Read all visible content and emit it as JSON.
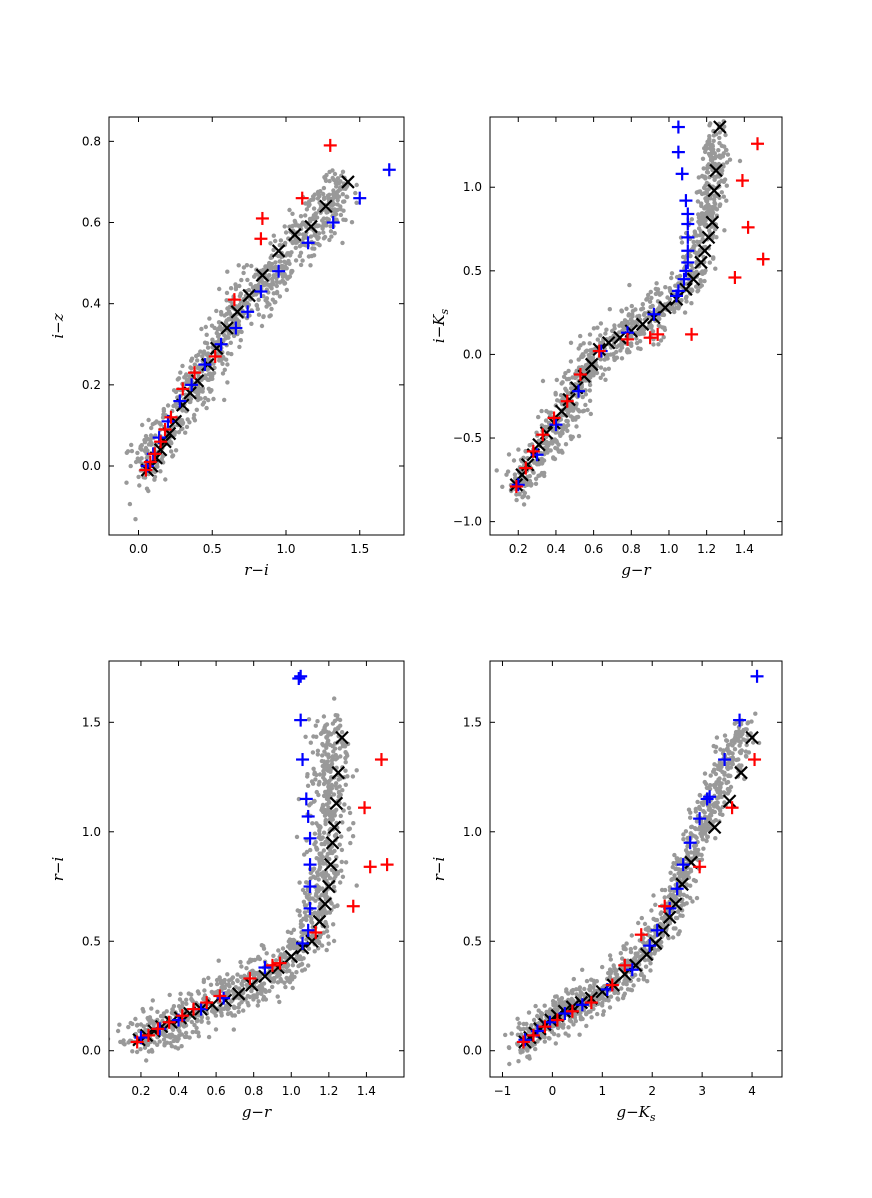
{
  "colors": {
    "background_points": "#999999",
    "black_series": "#000000",
    "blue_series": "#0000ff",
    "red_series": "#ff0000",
    "frame": "#000000"
  },
  "chart_data": [
    {
      "id": "panel-ri-iz",
      "type": "scatter",
      "xlabel": "r−i",
      "ylabel": "i−z",
      "xlim": [
        -0.2,
        1.8
      ],
      "ylim": [
        -0.17,
        0.86
      ],
      "xticks": [
        0.0,
        0.5,
        1.0,
        1.5
      ],
      "xtick_labels": [
        "0.0",
        "0.5",
        "1.0",
        "1.5"
      ],
      "yticks": [
        0.0,
        0.2,
        0.4,
        0.6,
        0.8
      ],
      "ytick_labels": [
        "0.0",
        "0.2",
        "0.4",
        "0.6",
        "0.8"
      ],
      "cloud": {
        "path": [
          [
            0.0,
            -0.01
          ],
          [
            0.3,
            0.14
          ],
          [
            0.6,
            0.34
          ],
          [
            1.0,
            0.52
          ],
          [
            1.4,
            0.69
          ]
        ],
        "scatter_x": 0.05,
        "scatter_y": 0.035,
        "count": 900
      },
      "series": [
        {
          "name": "black-x",
          "marker": "x",
          "x": [
            0.06,
            0.09,
            0.12,
            0.15,
            0.18,
            0.21,
            0.25,
            0.3,
            0.35,
            0.4,
            0.47,
            0.53,
            0.6,
            0.67,
            0.75,
            0.84,
            0.95,
            1.06,
            1.17,
            1.27,
            1.42
          ],
          "y": [
            -0.01,
            0.0,
            0.02,
            0.04,
            0.06,
            0.08,
            0.11,
            0.15,
            0.18,
            0.21,
            0.25,
            0.29,
            0.34,
            0.38,
            0.42,
            0.47,
            0.53,
            0.57,
            0.59,
            0.64,
            0.7
          ]
        },
        {
          "name": "blue-plus",
          "marker": "+",
          "x": [
            0.06,
            0.1,
            0.14,
            0.2,
            0.28,
            0.36,
            0.45,
            0.56,
            0.66,
            0.74,
            0.83,
            0.95,
            1.15,
            1.32,
            1.5,
            1.7
          ],
          "y": [
            0.0,
            0.03,
            0.07,
            0.11,
            0.16,
            0.2,
            0.25,
            0.3,
            0.34,
            0.38,
            0.43,
            0.48,
            0.55,
            0.6,
            0.66,
            0.73
          ]
        },
        {
          "name": "red-plus",
          "marker": "+",
          "x": [
            0.05,
            0.08,
            0.11,
            0.15,
            0.18,
            0.22,
            0.3,
            0.38,
            0.52,
            0.65,
            0.83,
            0.84,
            1.11,
            1.3
          ],
          "y": [
            -0.01,
            0.01,
            0.03,
            0.06,
            0.09,
            0.12,
            0.19,
            0.23,
            0.27,
            0.41,
            0.56,
            0.61,
            0.66,
            0.79
          ]
        }
      ]
    },
    {
      "id": "panel-gr-iKs",
      "type": "scatter",
      "xlabel": "g−r",
      "ylabel": "i−K",
      "ylabel_sub": "s",
      "xlim": [
        0.05,
        1.6
      ],
      "ylim": [
        -1.08,
        1.42
      ],
      "xticks": [
        0.2,
        0.4,
        0.6,
        0.8,
        1.0,
        1.2,
        1.4
      ],
      "xtick_labels": [
        "0.2",
        "0.4",
        "0.6",
        "0.8",
        "1.0",
        "1.2",
        "1.4"
      ],
      "yticks": [
        -1.0,
        -0.5,
        0.0,
        0.5,
        1.0
      ],
      "ytick_labels": [
        "−1.0",
        "−0.5",
        "0.0",
        "0.5",
        "1.0"
      ],
      "cloud": {
        "path": [
          [
            0.18,
            -0.82
          ],
          [
            0.4,
            -0.45
          ],
          [
            0.6,
            -0.02
          ],
          [
            0.8,
            0.15
          ],
          [
            1.0,
            0.3
          ],
          [
            1.12,
            0.45
          ],
          [
            1.18,
            0.7
          ],
          [
            1.22,
            1.0
          ],
          [
            1.26,
            1.32
          ]
        ],
        "scatter_x": 0.04,
        "scatter_y": 0.07,
        "count": 1000
      },
      "series": [
        {
          "name": "black-x",
          "marker": "x",
          "x": [
            0.19,
            0.22,
            0.25,
            0.28,
            0.31,
            0.35,
            0.39,
            0.43,
            0.47,
            0.51,
            0.55,
            0.59,
            0.63,
            0.68,
            0.74,
            0.8,
            0.86,
            0.92,
            0.98,
            1.04,
            1.09,
            1.13,
            1.17,
            1.19,
            1.21,
            1.23,
            1.24,
            1.25,
            1.27
          ],
          "y": [
            -0.78,
            -0.72,
            -0.66,
            -0.6,
            -0.54,
            -0.47,
            -0.41,
            -0.34,
            -0.27,
            -0.2,
            -0.13,
            -0.06,
            0.03,
            0.07,
            0.1,
            0.14,
            0.18,
            0.22,
            0.28,
            0.33,
            0.39,
            0.45,
            0.55,
            0.62,
            0.7,
            0.79,
            0.98,
            1.1,
            1.36
          ]
        },
        {
          "name": "blue-plus",
          "marker": "+",
          "x": [
            0.2,
            0.3,
            0.4,
            0.52,
            0.64,
            0.78,
            0.92,
            1.05,
            1.08,
            1.09,
            1.1,
            1.1,
            1.1,
            1.1,
            1.1,
            1.09,
            1.07,
            1.05,
            1.05,
            1.04
          ],
          "y": [
            -0.78,
            -0.6,
            -0.42,
            -0.22,
            0.02,
            0.13,
            0.24,
            0.38,
            0.45,
            0.5,
            0.55,
            0.62,
            0.7,
            0.78,
            0.84,
            0.92,
            1.08,
            1.21,
            1.36,
            0.35
          ]
        },
        {
          "name": "red-plus",
          "marker": "+",
          "x": [
            0.19,
            0.24,
            0.28,
            0.33,
            0.39,
            0.46,
            0.53,
            0.63,
            0.78,
            0.9,
            0.94,
            1.12,
            1.35,
            1.39,
            1.42,
            1.47,
            1.5
          ],
          "y": [
            -0.79,
            -0.68,
            -0.58,
            -0.48,
            -0.38,
            -0.28,
            -0.12,
            0.02,
            0.09,
            0.1,
            0.12,
            0.12,
            0.46,
            1.04,
            0.76,
            1.26,
            0.57
          ]
        }
      ]
    },
    {
      "id": "panel-gr-ri",
      "type": "scatter",
      "xlabel": "g−r",
      "ylabel": "r−i",
      "xlim": [
        0.03,
        1.6
      ],
      "ylim": [
        -0.12,
        1.78
      ],
      "xticks": [
        0.2,
        0.4,
        0.6,
        0.8,
        1.0,
        1.2,
        1.4
      ],
      "xtick_labels": [
        "0.2",
        "0.4",
        "0.6",
        "0.8",
        "1.0",
        "1.2",
        "1.4"
      ],
      "yticks": [
        0.0,
        0.5,
        1.0,
        1.5
      ],
      "ytick_labels": [
        "0.0",
        "0.5",
        "1.0",
        "1.5"
      ],
      "cloud": {
        "path": [
          [
            0.15,
            0.04
          ],
          [
            0.4,
            0.14
          ],
          [
            0.65,
            0.24
          ],
          [
            0.9,
            0.37
          ],
          [
            1.05,
            0.45
          ],
          [
            1.15,
            0.6
          ],
          [
            1.18,
            0.9
          ],
          [
            1.2,
            1.2
          ],
          [
            1.22,
            1.5
          ]
        ],
        "scatter_x": 0.05,
        "scatter_y": 0.05,
        "count": 1050
      },
      "series": [
        {
          "name": "black-x",
          "marker": "x",
          "x": [
            0.19,
            0.23,
            0.27,
            0.31,
            0.36,
            0.41,
            0.46,
            0.52,
            0.58,
            0.65,
            0.72,
            0.79,
            0.86,
            0.93,
            1.0,
            1.06,
            1.11,
            1.15,
            1.18,
            1.2,
            1.21,
            1.22,
            1.23,
            1.24,
            1.25,
            1.27
          ],
          "y": [
            0.05,
            0.07,
            0.09,
            0.11,
            0.13,
            0.15,
            0.17,
            0.19,
            0.21,
            0.23,
            0.26,
            0.3,
            0.34,
            0.38,
            0.43,
            0.47,
            0.5,
            0.59,
            0.67,
            0.75,
            0.85,
            0.95,
            1.02,
            1.13,
            1.27,
            1.43
          ]
        },
        {
          "name": "blue-plus",
          "marker": "+",
          "x": [
            0.2,
            0.3,
            0.4,
            0.52,
            0.64,
            0.86,
            1.06,
            1.09,
            1.1,
            1.1,
            1.1,
            1.1,
            1.09,
            1.08,
            1.06,
            1.05,
            1.05,
            1.04
          ],
          "y": [
            0.06,
            0.1,
            0.14,
            0.19,
            0.24,
            0.38,
            0.49,
            0.55,
            0.65,
            0.75,
            0.85,
            0.97,
            1.07,
            1.15,
            1.33,
            1.51,
            1.71,
            1.7
          ]
        },
        {
          "name": "red-plus",
          "marker": "+",
          "x": [
            0.18,
            0.24,
            0.29,
            0.35,
            0.42,
            0.48,
            0.55,
            0.62,
            0.78,
            0.9,
            0.94,
            1.13,
            1.33,
            1.39,
            1.42,
            1.48,
            1.51
          ],
          "y": [
            0.04,
            0.07,
            0.1,
            0.13,
            0.16,
            0.19,
            0.22,
            0.25,
            0.33,
            0.39,
            0.4,
            0.54,
            0.66,
            1.11,
            0.84,
            1.33,
            0.85
          ]
        }
      ]
    },
    {
      "id": "panel-gKs-ri",
      "type": "scatter",
      "xlabel": "g−K",
      "xlabel_sub": "s",
      "ylabel": "r−i",
      "xlim": [
        -1.25,
        4.6
      ],
      "ylim": [
        -0.12,
        1.78
      ],
      "xticks": [
        -1,
        0,
        1,
        2,
        3,
        4
      ],
      "xtick_labels": [
        "−1",
        "0",
        "1",
        "2",
        "3",
        "4"
      ],
      "yticks": [
        0.0,
        0.5,
        1.0,
        1.5
      ],
      "ytick_labels": [
        "0.0",
        "0.5",
        "1.0",
        "1.5"
      ],
      "cloud": {
        "path": [
          [
            -0.7,
            0.02
          ],
          [
            0.0,
            0.14
          ],
          [
            0.8,
            0.24
          ],
          [
            1.6,
            0.38
          ],
          [
            2.3,
            0.6
          ],
          [
            2.8,
            0.9
          ],
          [
            3.3,
            1.2
          ],
          [
            3.9,
            1.5
          ]
        ],
        "scatter_x": 0.14,
        "scatter_y": 0.045,
        "count": 1050
      },
      "series": [
        {
          "name": "black-x",
          "marker": "x",
          "x": [
            -0.55,
            -0.45,
            -0.35,
            -0.25,
            -0.15,
            -0.03,
            0.1,
            0.24,
            0.4,
            0.58,
            0.78,
            1.0,
            1.22,
            1.45,
            1.67,
            1.89,
            2.07,
            2.22,
            2.35,
            2.47,
            2.6,
            2.78,
            3.25,
            3.55,
            3.78,
            4.0
          ],
          "y": [
            0.04,
            0.06,
            0.08,
            0.1,
            0.12,
            0.14,
            0.16,
            0.18,
            0.2,
            0.22,
            0.24,
            0.27,
            0.3,
            0.35,
            0.39,
            0.44,
            0.49,
            0.55,
            0.61,
            0.67,
            0.76,
            0.86,
            1.02,
            1.14,
            1.27,
            1.43
          ]
        },
        {
          "name": "blue-plus",
          "marker": "+",
          "x": [
            -0.55,
            -0.3,
            -0.05,
            0.25,
            0.6,
            1.1,
            1.6,
            1.95,
            2.1,
            2.35,
            2.5,
            2.62,
            2.76,
            2.95,
            3.1,
            3.15,
            3.45,
            3.75,
            4.1
          ],
          "y": [
            0.05,
            0.09,
            0.13,
            0.17,
            0.21,
            0.28,
            0.37,
            0.48,
            0.55,
            0.65,
            0.74,
            0.85,
            0.95,
            1.06,
            1.15,
            1.16,
            1.33,
            1.51,
            1.71
          ]
        },
        {
          "name": "red-plus",
          "marker": "+",
          "x": [
            -0.58,
            -0.38,
            -0.15,
            0.1,
            0.4,
            0.78,
            1.2,
            1.45,
            1.78,
            2.25,
            2.95,
            3.6,
            4.05
          ],
          "y": [
            0.04,
            0.07,
            0.11,
            0.14,
            0.18,
            0.22,
            0.3,
            0.39,
            0.53,
            0.66,
            0.84,
            1.11,
            1.33
          ]
        }
      ]
    }
  ]
}
